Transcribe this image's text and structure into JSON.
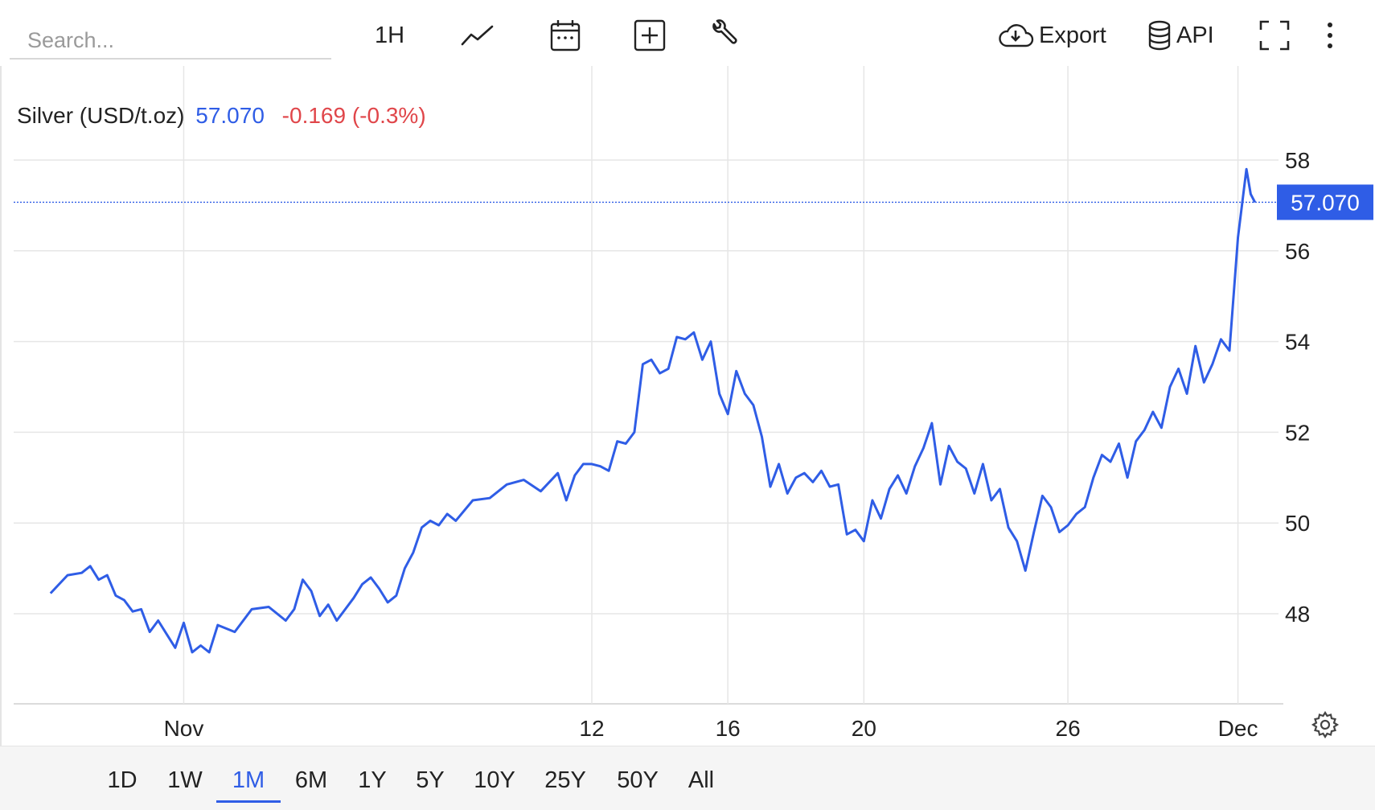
{
  "toolbar": {
    "search_placeholder": "Search...",
    "interval_label": "1H",
    "export_label": "Export",
    "api_label": "API"
  },
  "icons": {
    "line_type": "line-chart-icon",
    "calendar": "calendar-icon",
    "add": "add-box-icon",
    "tools": "wrench-icon",
    "export": "cloud-download-icon",
    "api": "database-icon",
    "fullscreen": "fullscreen-icon",
    "more": "kebab-menu-icon",
    "settings": "gear-icon"
  },
  "legend": {
    "name": "Silver (USD/t.oz)",
    "value": "57.070",
    "change": "-0.169 (-0.3%)"
  },
  "ranges": [
    "1D",
    "1W",
    "1M",
    "6M",
    "1Y",
    "5Y",
    "10Y",
    "25Y",
    "50Y",
    "All"
  ],
  "active_range": "1M",
  "colors": {
    "line": "#2f5de6",
    "price_tag": "#2f5de6",
    "negative_change": "#e0464a",
    "grid": "#e6e6e6"
  },
  "chart_data": {
    "type": "line",
    "title": "",
    "xlabel": "",
    "ylabel": "",
    "ylim": [
      46.0,
      58.5
    ],
    "yticks": [
      48,
      50,
      52,
      54,
      56,
      58
    ],
    "xlim": [
      "Oct 26",
      "Dec 1"
    ],
    "xticks": [
      {
        "label": "Nov",
        "x": "Oct 31"
      },
      {
        "label": "12",
        "x": "Nov 12"
      },
      {
        "label": "16",
        "x": "Nov 16"
      },
      {
        "label": "20",
        "x": "Nov 20"
      },
      {
        "label": "26",
        "x": "Nov 26"
      },
      {
        "label": "Dec",
        "x": "Dec 1"
      }
    ],
    "last_price": 57.07,
    "last_price_label": "57.070",
    "grid": true,
    "series": [
      {
        "values": [
          {
            "x": "Oct 27 02:00",
            "y": 48.45
          },
          {
            "x": "Oct 27 14:00",
            "y": 48.85
          },
          {
            "x": "Oct 28 00:00",
            "y": 48.9
          },
          {
            "x": "Oct 28 06:00",
            "y": 49.05
          },
          {
            "x": "Oct 28 12:00",
            "y": 48.75
          },
          {
            "x": "Oct 28 18:00",
            "y": 48.85
          },
          {
            "x": "Oct 29 00:00",
            "y": 48.4
          },
          {
            "x": "Oct 29 06:00",
            "y": 48.3
          },
          {
            "x": "Oct 29 12:00",
            "y": 48.05
          },
          {
            "x": "Oct 29 18:00",
            "y": 48.1
          },
          {
            "x": "Oct 30 00:00",
            "y": 47.6
          },
          {
            "x": "Oct 30 06:00",
            "y": 47.85
          },
          {
            "x": "Oct 30 12:00",
            "y": 47.55
          },
          {
            "x": "Oct 30 18:00",
            "y": 47.25
          },
          {
            "x": "Oct 31 00:00",
            "y": 47.8
          },
          {
            "x": "Oct 31 06:00",
            "y": 47.15
          },
          {
            "x": "Oct 31 12:00",
            "y": 47.3
          },
          {
            "x": "Oct 31 18:00",
            "y": 47.15
          },
          {
            "x": "Nov 01 00:00",
            "y": 47.75
          },
          {
            "x": "Nov 01 12:00",
            "y": 47.6
          },
          {
            "x": "Nov 02 00:00",
            "y": 48.1
          },
          {
            "x": "Nov 02 12:00",
            "y": 48.15
          },
          {
            "x": "Nov 03 00:00",
            "y": 47.85
          },
          {
            "x": "Nov 03 06:00",
            "y": 48.1
          },
          {
            "x": "Nov 03 12:00",
            "y": 48.75
          },
          {
            "x": "Nov 03 18:00",
            "y": 48.5
          },
          {
            "x": "Nov 04 00:00",
            "y": 47.95
          },
          {
            "x": "Nov 04 06:00",
            "y": 48.2
          },
          {
            "x": "Nov 04 12:00",
            "y": 47.85
          },
          {
            "x": "Nov 04 18:00",
            "y": 48.1
          },
          {
            "x": "Nov 05 00:00",
            "y": 48.35
          },
          {
            "x": "Nov 05 06:00",
            "y": 48.65
          },
          {
            "x": "Nov 05 12:00",
            "y": 48.8
          },
          {
            "x": "Nov 05 18:00",
            "y": 48.55
          },
          {
            "x": "Nov 06 00:00",
            "y": 48.25
          },
          {
            "x": "Nov 06 06:00",
            "y": 48.4
          },
          {
            "x": "Nov 06 12:00",
            "y": 49.0
          },
          {
            "x": "Nov 06 18:00",
            "y": 49.35
          },
          {
            "x": "Nov 07 00:00",
            "y": 49.9
          },
          {
            "x": "Nov 07 06:00",
            "y": 50.05
          },
          {
            "x": "Nov 07 12:00",
            "y": 49.95
          },
          {
            "x": "Nov 07 18:00",
            "y": 50.2
          },
          {
            "x": "Nov 08 00:00",
            "y": 50.05
          },
          {
            "x": "Nov 08 12:00",
            "y": 50.5
          },
          {
            "x": "Nov 09 00:00",
            "y": 50.55
          },
          {
            "x": "Nov 09 12:00",
            "y": 50.85
          },
          {
            "x": "Nov 10 00:00",
            "y": 50.95
          },
          {
            "x": "Nov 10 12:00",
            "y": 50.7
          },
          {
            "x": "Nov 11 00:00",
            "y": 51.1
          },
          {
            "x": "Nov 11 06:00",
            "y": 50.5
          },
          {
            "x": "Nov 11 12:00",
            "y": 51.05
          },
          {
            "x": "Nov 11 18:00",
            "y": 51.3
          },
          {
            "x": "Nov 12 00:00",
            "y": 51.3
          },
          {
            "x": "Nov 12 06:00",
            "y": 51.25
          },
          {
            "x": "Nov 12 12:00",
            "y": 51.15
          },
          {
            "x": "Nov 12 18:00",
            "y": 51.8
          },
          {
            "x": "Nov 13 00:00",
            "y": 51.75
          },
          {
            "x": "Nov 13 06:00",
            "y": 52.0
          },
          {
            "x": "Nov 13 12:00",
            "y": 53.5
          },
          {
            "x": "Nov 13 18:00",
            "y": 53.6
          },
          {
            "x": "Nov 14 00:00",
            "y": 53.3
          },
          {
            "x": "Nov 14 06:00",
            "y": 53.4
          },
          {
            "x": "Nov 14 12:00",
            "y": 54.1
          },
          {
            "x": "Nov 14 18:00",
            "y": 54.05
          },
          {
            "x": "Nov 15 00:00",
            "y": 54.2
          },
          {
            "x": "Nov 15 06:00",
            "y": 53.6
          },
          {
            "x": "Nov 15 12:00",
            "y": 54.0
          },
          {
            "x": "Nov 15 18:00",
            "y": 52.85
          },
          {
            "x": "Nov 16 00:00",
            "y": 52.4
          },
          {
            "x": "Nov 16 06:00",
            "y": 53.35
          },
          {
            "x": "Nov 16 12:00",
            "y": 52.85
          },
          {
            "x": "Nov 16 18:00",
            "y": 52.6
          },
          {
            "x": "Nov 17 00:00",
            "y": 51.9
          },
          {
            "x": "Nov 17 06:00",
            "y": 50.8
          },
          {
            "x": "Nov 17 12:00",
            "y": 51.3
          },
          {
            "x": "Nov 17 18:00",
            "y": 50.65
          },
          {
            "x": "Nov 18 00:00",
            "y": 51.0
          },
          {
            "x": "Nov 18 06:00",
            "y": 51.1
          },
          {
            "x": "Nov 18 12:00",
            "y": 50.9
          },
          {
            "x": "Nov 18 18:00",
            "y": 51.15
          },
          {
            "x": "Nov 19 00:00",
            "y": 50.8
          },
          {
            "x": "Nov 19 06:00",
            "y": 50.85
          },
          {
            "x": "Nov 19 12:00",
            "y": 49.75
          },
          {
            "x": "Nov 19 18:00",
            "y": 49.85
          },
          {
            "x": "Nov 20 00:00",
            "y": 49.6
          },
          {
            "x": "Nov 20 06:00",
            "y": 50.5
          },
          {
            "x": "Nov 20 12:00",
            "y": 50.1
          },
          {
            "x": "Nov 20 18:00",
            "y": 50.75
          },
          {
            "x": "Nov 21 00:00",
            "y": 51.05
          },
          {
            "x": "Nov 21 06:00",
            "y": 50.65
          },
          {
            "x": "Nov 21 12:00",
            "y": 51.25
          },
          {
            "x": "Nov 21 18:00",
            "y": 51.65
          },
          {
            "x": "Nov 22 00:00",
            "y": 52.2
          },
          {
            "x": "Nov 22 06:00",
            "y": 50.85
          },
          {
            "x": "Nov 22 12:00",
            "y": 51.7
          },
          {
            "x": "Nov 22 18:00",
            "y": 51.35
          },
          {
            "x": "Nov 23 00:00",
            "y": 51.2
          },
          {
            "x": "Nov 23 06:00",
            "y": 50.65
          },
          {
            "x": "Nov 23 12:00",
            "y": 51.3
          },
          {
            "x": "Nov 23 18:00",
            "y": 50.5
          },
          {
            "x": "Nov 24 00:00",
            "y": 50.75
          },
          {
            "x": "Nov 24 06:00",
            "y": 49.9
          },
          {
            "x": "Nov 24 12:00",
            "y": 49.6
          },
          {
            "x": "Nov 24 18:00",
            "y": 48.95
          },
          {
            "x": "Nov 25 00:00",
            "y": 49.8
          },
          {
            "x": "Nov 25 06:00",
            "y": 50.6
          },
          {
            "x": "Nov 25 12:00",
            "y": 50.35
          },
          {
            "x": "Nov 25 18:00",
            "y": 49.8
          },
          {
            "x": "Nov 26 00:00",
            "y": 49.95
          },
          {
            "x": "Nov 26 06:00",
            "y": 50.2
          },
          {
            "x": "Nov 26 12:00",
            "y": 50.35
          },
          {
            "x": "Nov 26 18:00",
            "y": 51.0
          },
          {
            "x": "Nov 27 00:00",
            "y": 51.5
          },
          {
            "x": "Nov 27 06:00",
            "y": 51.35
          },
          {
            "x": "Nov 27 12:00",
            "y": 51.75
          },
          {
            "x": "Nov 27 18:00",
            "y": 51.0
          },
          {
            "x": "Nov 28 00:00",
            "y": 51.8
          },
          {
            "x": "Nov 28 06:00",
            "y": 52.05
          },
          {
            "x": "Nov 28 12:00",
            "y": 52.45
          },
          {
            "x": "Nov 28 18:00",
            "y": 52.1
          },
          {
            "x": "Nov 29 00:00",
            "y": 53.0
          },
          {
            "x": "Nov 29 06:00",
            "y": 53.4
          },
          {
            "x": "Nov 29 12:00",
            "y": 52.85
          },
          {
            "x": "Nov 29 18:00",
            "y": 53.9
          },
          {
            "x": "Nov 30 00:00",
            "y": 53.1
          },
          {
            "x": "Nov 30 06:00",
            "y": 53.5
          },
          {
            "x": "Nov 30 12:00",
            "y": 54.05
          },
          {
            "x": "Nov 30 18:00",
            "y": 53.8
          },
          {
            "x": "Dec 01 00:00",
            "y": 56.3
          },
          {
            "x": "Dec 01 06:00",
            "y": 57.8
          },
          {
            "x": "Dec 01 09:00",
            "y": 57.25
          },
          {
            "x": "Dec 01 12:00",
            "y": 57.07
          }
        ]
      }
    ]
  }
}
